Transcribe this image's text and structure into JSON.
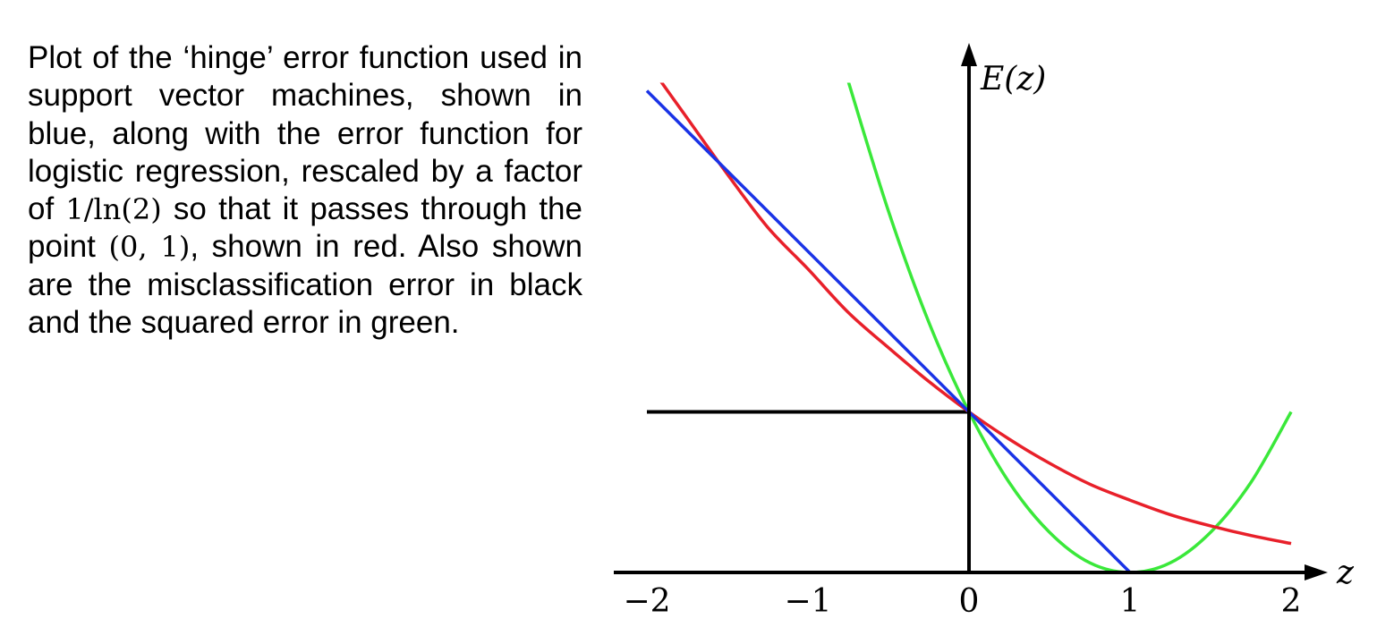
{
  "caption": {
    "part1": "Plot of the ‘hinge’ error function used in support vector machines, shown in blue, along with the error function for logistic regression, rescaled by a factor of ",
    "math1": "1/ln(2)",
    "part2": " so that it passes through the point ",
    "math2": "(0, 1)",
    "part3": ", shown in red. Also shown are the misclassification error in black and the squared error in green."
  },
  "chart_data": {
    "type": "line",
    "xlabel": "z",
    "ylabel": "E(z)",
    "xlim": [
      -2,
      2
    ],
    "ylim": [
      0,
      3
    ],
    "xticks": [
      "−2",
      "−1",
      "0",
      "1",
      "2"
    ],
    "grid": false,
    "series": [
      {
        "name": "hinge",
        "color": "#1a33e6",
        "x": [
          -2,
          1,
          2
        ],
        "y": [
          3,
          0,
          0
        ]
      },
      {
        "name": "logistic",
        "color": "#e8202a",
        "x": [
          -2.0,
          -1.75,
          -1.5,
          -1.25,
          -1.0,
          -0.75,
          -0.5,
          -0.25,
          0.0,
          0.25,
          0.5,
          0.75,
          1.0,
          1.25,
          1.5,
          1.75,
          2.0
        ],
        "y": [
          3.18,
          2.83,
          2.48,
          2.15,
          1.89,
          1.62,
          1.4,
          1.19,
          1.0,
          0.83,
          0.68,
          0.55,
          0.45,
          0.36,
          0.29,
          0.23,
          0.18
        ]
      },
      {
        "name": "misclassification",
        "color": "#000000",
        "x": [
          -2,
          0,
          0,
          2
        ],
        "y": [
          1,
          1,
          0,
          0
        ]
      },
      {
        "name": "squared",
        "color": "#3ae83a",
        "x": [
          -0.75,
          -0.5,
          -0.25,
          0.0,
          0.25,
          0.5,
          0.75,
          1.0,
          1.25,
          1.5,
          1.75,
          2.0
        ],
        "y": [
          3.06,
          2.25,
          1.56,
          1.0,
          0.56,
          0.25,
          0.06,
          0.0,
          0.06,
          0.25,
          0.56,
          1.0
        ]
      }
    ]
  }
}
